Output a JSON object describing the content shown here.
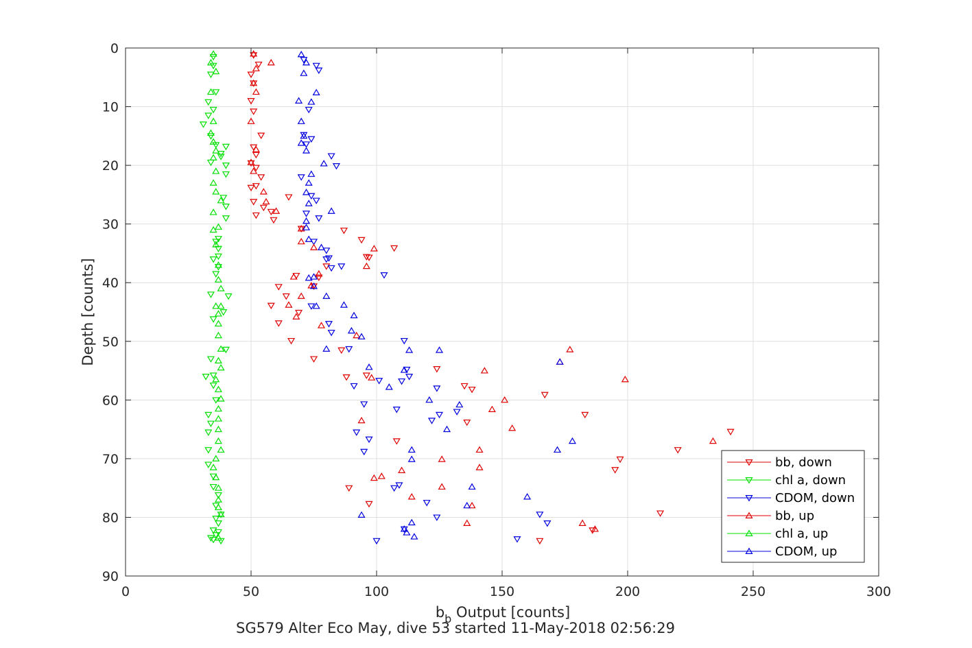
{
  "chart_data": {
    "type": "scatter",
    "xlabel_main": "b",
    "xlabel_sub": "b",
    "xlabel_rest": " Output [counts]",
    "ylabel": "Depth [counts]",
    "subtitle": "SG579 Alter Eco May, dive 53 started 11-May-2018 02:56:29",
    "xlim": [
      0,
      300
    ],
    "ylim": [
      0,
      90
    ],
    "y_reversed": true,
    "grid": true,
    "xticks": [
      0,
      50,
      100,
      150,
      200,
      250,
      300
    ],
    "yticks": [
      0,
      10,
      20,
      30,
      40,
      50,
      60,
      70,
      80,
      90
    ],
    "legend_position": "bottom-right",
    "series": [
      {
        "name": "bb, down",
        "color": "#e00000",
        "marker": "triangle-down",
        "x": [
          51,
          53,
          50,
          51,
          50,
          51,
          54,
          51,
          52,
          50,
          52,
          54,
          52,
          50,
          51,
          55,
          52,
          65,
          59,
          58,
          70,
          87,
          94,
          107,
          97,
          96,
          80,
          77,
          68,
          75,
          61,
          58,
          64,
          69,
          61,
          66,
          88,
          75,
          86,
          96,
          124,
          135,
          138,
          167,
          183,
          136,
          108,
          241,
          220,
          197,
          195,
          89,
          97,
          213,
          186,
          165
        ],
        "y": [
          1.2,
          2.8,
          4.5,
          6.0,
          9.0,
          10.8,
          14.9,
          16.9,
          18.2,
          19.6,
          20.4,
          22.0,
          23.5,
          23.8,
          26.2,
          27.2,
          28.5,
          25.4,
          29.3,
          27.9,
          30.8,
          31.1,
          32.7,
          34.1,
          35.7,
          35.6,
          37.2,
          39.1,
          38.8,
          40.6,
          40.7,
          43.9,
          42.3,
          45.1,
          46.9,
          49.9,
          56.1,
          53.0,
          51.5,
          55.8,
          54.7,
          57.6,
          58.2,
          59.1,
          62.5,
          63.8,
          67.0,
          65.4,
          68.5,
          70.1,
          71.9,
          75.0,
          77.7,
          79.3,
          82.2,
          84.0
        ]
      },
      {
        "name": "chl a, down",
        "color": "#00e000",
        "marker": "triangle-down",
        "x": [
          35,
          35,
          34,
          36,
          33,
          35,
          33,
          31,
          34,
          36,
          38,
          40,
          34,
          38,
          41,
          39,
          40,
          40,
          37,
          36,
          37,
          37,
          40,
          40,
          40,
          35,
          37,
          36,
          34,
          39,
          35,
          32,
          34,
          35,
          35,
          36,
          33,
          34,
          33,
          33,
          33,
          35,
          35,
          37,
          36,
          38,
          37,
          35,
          36,
          34,
          35,
          38,
          37,
          36
        ],
        "y": [
          1.5,
          3.0,
          4.5,
          7.5,
          9.2,
          10.5,
          11.5,
          13.0,
          15.0,
          16.5,
          18.0,
          16.8,
          19.5,
          18.5,
          42.3,
          25.5,
          27.0,
          29.0,
          32.5,
          33.0,
          34.2,
          35.5,
          51.4,
          20.0,
          21.5,
          36.0,
          37.3,
          38.5,
          42.0,
          45.0,
          46.2,
          56.0,
          53.0,
          55.8,
          57.5,
          60.0,
          62.5,
          64.0,
          65.5,
          68.5,
          71.0,
          73.0,
          74.8,
          76.2,
          78.0,
          79.5,
          81.0,
          82.2,
          83.0,
          83.5,
          83.8,
          84.0,
          82.5,
          80.2
        ]
      },
      {
        "name": "CDOM, down",
        "color": "#0000e0",
        "marker": "triangle-down",
        "x": [
          71,
          76,
          77,
          73,
          71,
          74,
          72,
          82,
          84,
          70,
          74,
          76,
          72,
          77,
          80,
          81,
          86,
          103,
          75,
          80,
          82,
          74,
          81,
          82,
          89,
          91,
          111,
          125,
          122,
          97,
          95,
          92,
          113,
          110,
          112,
          124,
          132,
          108,
          95,
          101,
          107,
          109,
          120,
          124,
          111,
          165,
          168,
          156,
          100
        ],
        "y": [
          2.0,
          3.0,
          3.8,
          10.5,
          14.8,
          15.5,
          16.4,
          18.4,
          20.1,
          22.0,
          25.2,
          26.0,
          28.2,
          29.0,
          34.5,
          35.8,
          37.2,
          38.7,
          33.0,
          36.0,
          37.5,
          44.0,
          47.0,
          48.5,
          51.3,
          57.6,
          49.9,
          62.5,
          63.5,
          66.7,
          68.8,
          65.5,
          56.0,
          56.8,
          54.8,
          58.0,
          62.0,
          61.6,
          60.7,
          56.7,
          75.0,
          74.5,
          77.5,
          80.0,
          82.0,
          79.5,
          81.0,
          83.7,
          84.0
        ]
      },
      {
        "name": "bb, up",
        "color": "#e00000",
        "marker": "triangle-up",
        "x": [
          51,
          58,
          52,
          51,
          52,
          50,
          52,
          50,
          51,
          55,
          56,
          60,
          70,
          70,
          75,
          67,
          65,
          70,
          68,
          74,
          77,
          78,
          92,
          99,
          96,
          94,
          98,
          143,
          177,
          173,
          199,
          151,
          146,
          154,
          234,
          141,
          141,
          126,
          102,
          114,
          126,
          138,
          182,
          187,
          136,
          99,
          110
        ],
        "y": [
          1.0,
          2.5,
          3.5,
          6.0,
          7.5,
          12.5,
          17.3,
          19.5,
          21.0,
          24.5,
          26.2,
          27.8,
          30.8,
          33.0,
          34.0,
          39.0,
          43.8,
          42.3,
          45.8,
          40.5,
          38.5,
          47.3,
          49.0,
          34.2,
          37.2,
          63.5,
          56.2,
          55.0,
          51.4,
          53.5,
          56.5,
          60.0,
          61.6,
          64.8,
          67.0,
          68.5,
          71.5,
          70.1,
          73.0,
          76.5,
          74.8,
          78.0,
          81.0,
          82.0,
          81.0,
          73.3,
          72.0
        ]
      },
      {
        "name": "chl a, up",
        "color": "#00e000",
        "marker": "triangle-up",
        "x": [
          35,
          34,
          36,
          34,
          35,
          34,
          35,
          36,
          35,
          36,
          35,
          36,
          38,
          35,
          37,
          35,
          36,
          37,
          37,
          38,
          36,
          38,
          37,
          37,
          37,
          38,
          37,
          38,
          36,
          37,
          38,
          37,
          37,
          37,
          37,
          38,
          36,
          35,
          36,
          37,
          37,
          37,
          38,
          37
        ],
        "y": [
          1.0,
          2.5,
          4.0,
          7.5,
          12.5,
          14.5,
          16.0,
          17.5,
          18.7,
          21.0,
          23.0,
          24.5,
          26.0,
          28.0,
          30.5,
          31.0,
          33.5,
          37.0,
          39.5,
          41.0,
          44.0,
          44.0,
          45.3,
          47.0,
          49.0,
          51.3,
          53.3,
          54.5,
          56.5,
          58.2,
          59.8,
          61.5,
          63.2,
          65.0,
          67.0,
          68.5,
          70.0,
          71.5,
          73.2,
          75.0,
          77.0,
          78.3,
          79.5,
          83.5
        ]
      },
      {
        "name": "CDOM, up",
        "color": "#0000e0",
        "marker": "triangle-up",
        "x": [
          70,
          72,
          71,
          74,
          76,
          69,
          70,
          71,
          72,
          70,
          79,
          74,
          73,
          72,
          73,
          72,
          82,
          72,
          73,
          78,
          73,
          75,
          80,
          76,
          75,
          80,
          87,
          91,
          90,
          94,
          113,
          97,
          111,
          105,
          114,
          133,
          114,
          121,
          128,
          125,
          114,
          136,
          111,
          112,
          115,
          138,
          160,
          173,
          178,
          172,
          94
        ],
        "y": [
          1.1,
          2.5,
          4.3,
          9.2,
          7.6,
          9.0,
          12.5,
          15.0,
          17.5,
          16.2,
          19.7,
          21.5,
          23.0,
          24.6,
          26.5,
          29.5,
          27.8,
          30.6,
          32.6,
          34.0,
          39.2,
          40.6,
          42.3,
          44.0,
          39.0,
          51.3,
          43.8,
          45.6,
          48.2,
          49.2,
          51.5,
          54.4,
          54.9,
          57.8,
          68.5,
          60.8,
          70.1,
          60.0,
          65.0,
          51.5,
          80.9,
          78.0,
          82.0,
          82.6,
          83.3,
          74.8,
          76.5,
          53.5,
          67.0,
          68.5,
          79.6
        ]
      }
    ]
  }
}
